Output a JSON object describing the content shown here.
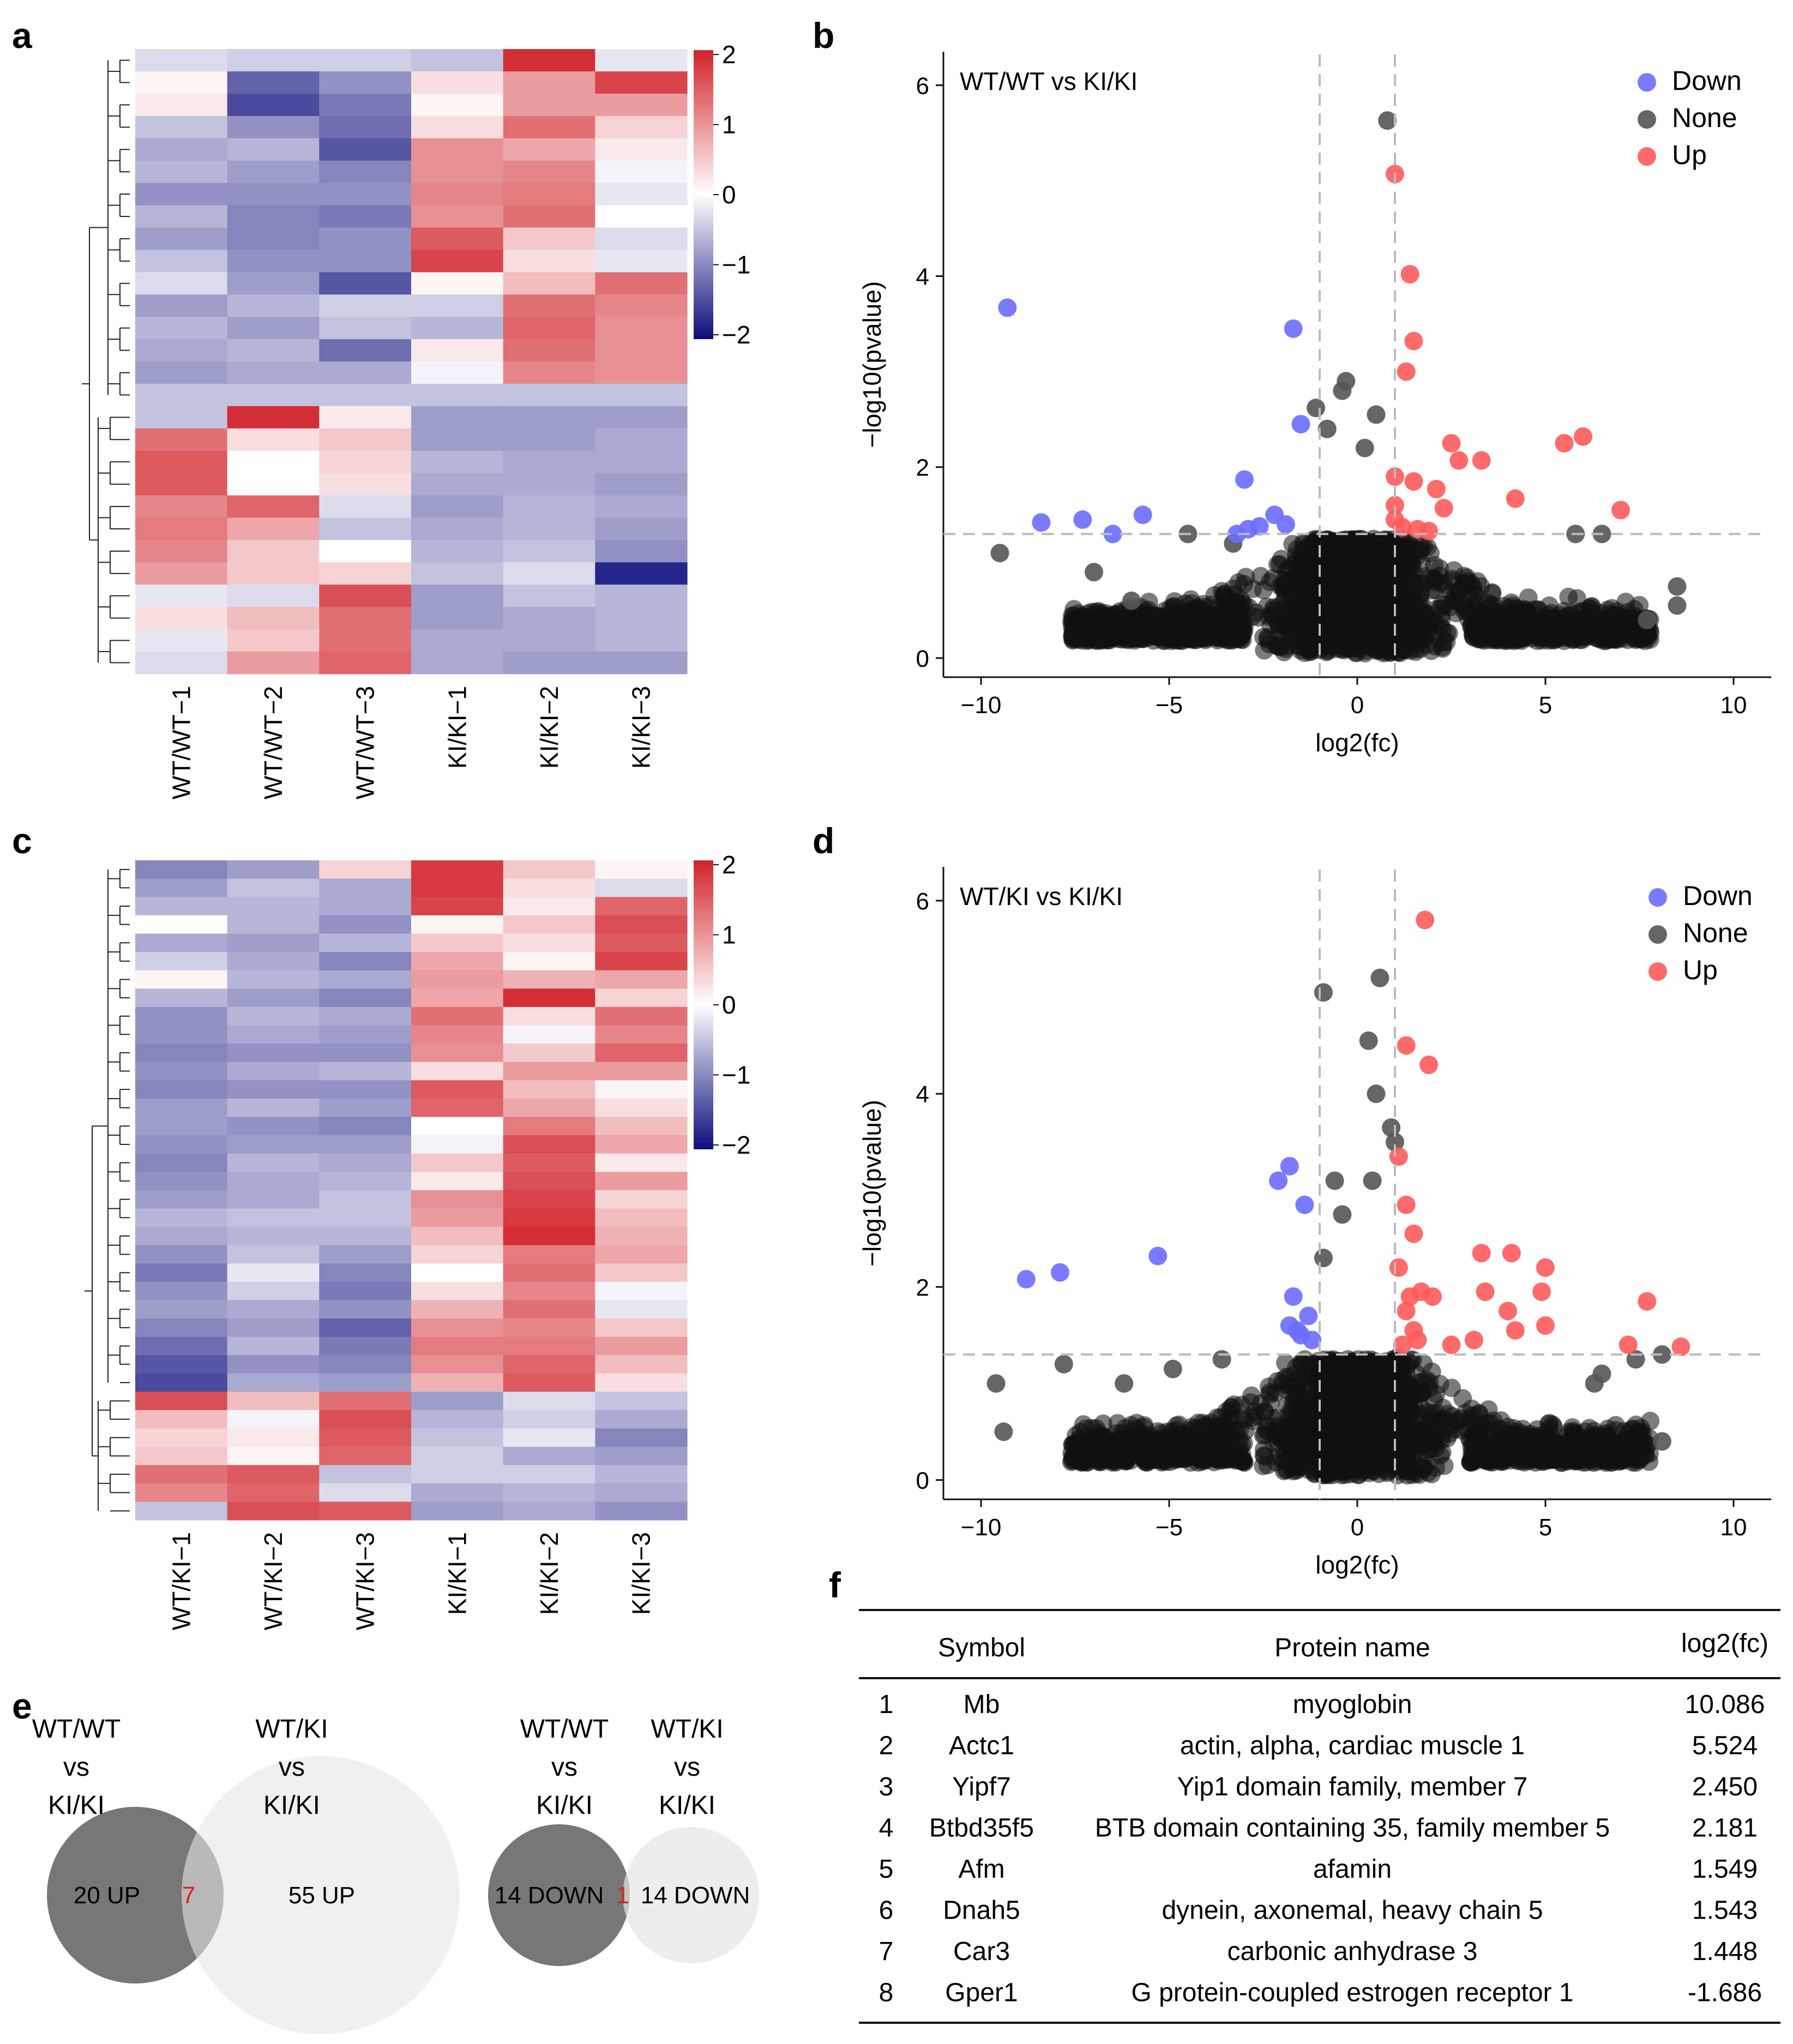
{
  "panels": {
    "a": "a",
    "b": "b",
    "c": "c",
    "d": "d",
    "e": "e",
    "f": "f"
  },
  "colors": {
    "low": "#0d0d7d",
    "mid": "#ffffff",
    "high": "#d1232a",
    "down": "#6b6bff",
    "none": "#555555",
    "up": "#ff5a5a",
    "venn_dark": "#777777",
    "venn_light": "#e8e8e8"
  },
  "chart_data": [
    {
      "id": "a",
      "type": "heatmap",
      "title": "",
      "columns": [
        "WT/WT−1",
        "WT/WT−2",
        "WT/WT−3",
        "KI/KI−1",
        "KI/KI−2",
        "KI/KI−3"
      ],
      "colorbar": {
        "ticks": [
          "2",
          "1",
          "0",
          "−1",
          "−2"
        ],
        "range": [
          -2,
          2
        ]
      },
      "rows": [
        [
          -0.3,
          -0.4,
          -0.4,
          -0.5,
          1.9,
          -0.2
        ],
        [
          0.1,
          -1.3,
          -0.9,
          0.3,
          0.9,
          1.7
        ],
        [
          0.2,
          -1.5,
          -1.1,
          0.1,
          0.9,
          0.9
        ],
        [
          -0.5,
          -0.9,
          -1.2,
          0.3,
          1.3,
          0.4
        ],
        [
          -0.7,
          -0.6,
          -1.4,
          1.0,
          0.8,
          0.2
        ],
        [
          -0.6,
          -0.8,
          -1.0,
          1.0,
          1.1,
          -0.1
        ],
        [
          -0.9,
          -0.9,
          -0.9,
          1.1,
          1.2,
          -0.2
        ],
        [
          -0.6,
          -1.0,
          -1.1,
          1.0,
          1.3,
          0.0
        ],
        [
          -0.8,
          -1.0,
          -0.9,
          1.5,
          0.5,
          -0.3
        ],
        [
          -0.5,
          -0.9,
          -0.9,
          1.7,
          0.3,
          -0.2
        ],
        [
          -0.3,
          -0.8,
          -1.4,
          0.1,
          0.6,
          1.3
        ],
        [
          -0.8,
          -0.6,
          -0.4,
          -0.4,
          1.3,
          1.1
        ],
        [
          -0.6,
          -0.8,
          -0.5,
          -0.6,
          1.4,
          1.0
        ],
        [
          -0.7,
          -0.6,
          -1.2,
          0.2,
          1.3,
          1.0
        ],
        [
          -0.8,
          -0.7,
          -0.7,
          -0.1,
          1.1,
          1.0
        ],
        [
          -0.5,
          -0.5,
          -0.5,
          -0.5,
          -0.5,
          -0.5
        ],
        [
          -0.5,
          1.9,
          0.2,
          -0.8,
          -0.8,
          -0.8
        ],
        [
          1.3,
          0.3,
          0.5,
          -0.8,
          -0.8,
          -0.7
        ],
        [
          1.5,
          0.0,
          0.4,
          -0.6,
          -0.7,
          -0.7
        ],
        [
          1.5,
          0.0,
          0.3,
          -0.7,
          -0.7,
          -0.8
        ],
        [
          1.1,
          1.4,
          -0.3,
          -0.8,
          -0.6,
          -0.7
        ],
        [
          1.2,
          0.8,
          -0.5,
          -0.7,
          -0.6,
          -0.8
        ],
        [
          1.1,
          0.5,
          0.0,
          -0.6,
          -0.5,
          -0.9
        ],
        [
          0.9,
          0.5,
          0.4,
          -0.5,
          -0.3,
          -1.8
        ],
        [
          -0.2,
          -0.3,
          1.6,
          -0.8,
          -0.5,
          -0.6
        ],
        [
          0.3,
          0.6,
          1.3,
          -0.8,
          -0.7,
          -0.6
        ],
        [
          -0.2,
          0.5,
          1.3,
          -0.7,
          -0.7,
          -0.6
        ],
        [
          -0.3,
          0.9,
          1.4,
          -0.7,
          -0.8,
          -0.8
        ]
      ]
    },
    {
      "id": "b",
      "type": "scatter",
      "title": "WT/WT vs KI/KI",
      "xlabel": "log2(fc)",
      "ylabel": "−log10(pvalue)",
      "xlim": [
        -11,
        11
      ],
      "ylim": [
        -0.2,
        6.35
      ],
      "xticks": [
        "−10",
        "−5",
        "0",
        "5",
        "10"
      ],
      "yticks": [
        "0",
        "2",
        "4",
        "6"
      ],
      "vlines": [
        -1,
        1
      ],
      "hline": 1.3,
      "legend": {
        "position": "top-right",
        "items": [
          {
            "key": "down",
            "label": "Down"
          },
          {
            "key": "none",
            "label": "None"
          },
          {
            "key": "up",
            "label": "Up"
          }
        ]
      },
      "series": {
        "down": [
          [
            -9.3,
            3.67
          ],
          [
            -8.4,
            1.42
          ],
          [
            -7.3,
            1.45
          ],
          [
            -6.5,
            1.3
          ],
          [
            -5.7,
            1.5
          ],
          [
            -3.0,
            1.87
          ],
          [
            -2.9,
            1.35
          ],
          [
            -2.6,
            1.38
          ],
          [
            -2.2,
            1.5
          ],
          [
            -1.7,
            3.45
          ],
          [
            -1.5,
            2.45
          ],
          [
            -1.9,
            1.4
          ],
          [
            -3.2,
            1.3
          ]
        ],
        "up": [
          [
            1.0,
            5.07
          ],
          [
            1.4,
            4.02
          ],
          [
            1.5,
            3.32
          ],
          [
            1.3,
            3.0
          ],
          [
            1.0,
            1.9
          ],
          [
            1.0,
            1.6
          ],
          [
            1.0,
            1.45
          ],
          [
            2.5,
            2.25
          ],
          [
            2.7,
            2.07
          ],
          [
            3.3,
            2.07
          ],
          [
            2.1,
            1.77
          ],
          [
            2.3,
            1.57
          ],
          [
            4.2,
            1.67
          ],
          [
            5.5,
            2.25
          ],
          [
            6.0,
            2.32
          ],
          [
            7.0,
            1.55
          ],
          [
            1.6,
            1.35
          ],
          [
            1.9,
            1.33
          ],
          [
            1.2,
            1.37
          ],
          [
            1.5,
            1.85
          ]
        ],
        "none": [
          [
            -9.5,
            1.1
          ],
          [
            0.8,
            5.63
          ],
          [
            -1.1,
            2.62
          ],
          [
            -0.4,
            2.8
          ],
          [
            -0.3,
            2.9
          ],
          [
            0.5,
            2.55
          ],
          [
            -0.8,
            2.4
          ],
          [
            0.2,
            2.2
          ],
          [
            -4.5,
            1.3
          ],
          [
            -3.3,
            1.2
          ],
          [
            5.8,
            1.3
          ],
          [
            6.5,
            1.3
          ],
          [
            7.7,
            0.4
          ],
          [
            8.5,
            0.75
          ],
          [
            8.5,
            0.55
          ],
          [
            -7.0,
            0.9
          ],
          [
            -6.0,
            0.6
          ]
        ]
      }
    },
    {
      "id": "c",
      "type": "heatmap",
      "title": "",
      "columns": [
        "WT/KI−1",
        "WT/KI−2",
        "WT/KI−3",
        "KI/KI−1",
        "KI/KI−2",
        "KI/KI−3"
      ],
      "colorbar": {
        "ticks": [
          "2",
          "1",
          "0",
          "−1",
          "−2"
        ],
        "range": [
          -2,
          2
        ]
      },
      "rows": [
        [
          -1.0,
          -0.8,
          0.4,
          1.8,
          0.5,
          0.1
        ],
        [
          -0.8,
          -0.5,
          -0.7,
          1.8,
          0.3,
          -0.3
        ],
        [
          -0.6,
          -0.6,
          -0.7,
          1.7,
          0.2,
          1.4
        ],
        [
          0.0,
          -0.6,
          -0.9,
          0.1,
          0.5,
          1.6
        ],
        [
          -0.7,
          -0.8,
          -0.6,
          0.5,
          0.3,
          1.5
        ],
        [
          -0.4,
          -0.7,
          -1.0,
          0.8,
          0.1,
          1.7
        ],
        [
          0.1,
          -0.6,
          -0.7,
          0.9,
          0.7,
          0.8
        ],
        [
          -0.6,
          -0.8,
          -1.0,
          0.8,
          1.9,
          0.4
        ],
        [
          -0.9,
          -0.6,
          -0.7,
          1.3,
          0.3,
          1.3
        ],
        [
          -0.9,
          -0.7,
          -0.8,
          1.1,
          -0.1,
          1.1
        ],
        [
          -1.0,
          -0.9,
          -0.9,
          1.0,
          0.5,
          1.4
        ],
        [
          -0.9,
          -0.7,
          -0.6,
          0.3,
          0.9,
          0.9
        ],
        [
          -1.0,
          -0.9,
          -0.9,
          1.5,
          0.6,
          0.1
        ],
        [
          -0.8,
          -0.6,
          -0.8,
          1.4,
          0.8,
          0.3
        ],
        [
          -0.8,
          -0.9,
          -1.0,
          0.0,
          1.2,
          0.6
        ],
        [
          -0.9,
          -0.8,
          -0.8,
          -0.1,
          1.6,
          0.8
        ],
        [
          -1.0,
          -0.6,
          -0.7,
          0.5,
          1.5,
          0.2
        ],
        [
          -0.9,
          -0.7,
          -0.6,
          0.2,
          1.6,
          0.9
        ],
        [
          -0.8,
          -0.7,
          -0.5,
          1.0,
          1.7,
          0.4
        ],
        [
          -0.6,
          -0.5,
          -0.5,
          0.9,
          1.8,
          0.6
        ],
        [
          -0.7,
          -0.6,
          -0.6,
          0.6,
          1.9,
          0.7
        ],
        [
          -0.9,
          -0.5,
          -0.8,
          0.4,
          1.2,
          0.8
        ],
        [
          -1.1,
          -0.2,
          -1.0,
          0.0,
          1.3,
          0.5
        ],
        [
          -0.9,
          -0.4,
          -1.1,
          0.3,
          1.1,
          -0.1
        ],
        [
          -0.8,
          -0.7,
          -0.9,
          0.7,
          1.3,
          -0.2
        ],
        [
          -1.0,
          -0.8,
          -1.3,
          1.0,
          1.1,
          0.5
        ],
        [
          -1.2,
          -0.6,
          -1.1,
          1.2,
          1.2,
          0.9
        ],
        [
          -1.4,
          -0.9,
          -1.0,
          1.0,
          1.4,
          0.6
        ],
        [
          -1.5,
          -0.7,
          -0.8,
          0.7,
          1.5,
          0.3
        ],
        [
          1.6,
          0.6,
          1.3,
          -0.8,
          -0.3,
          -0.5
        ],
        [
          0.6,
          -0.1,
          1.6,
          -0.6,
          -0.4,
          -0.7
        ],
        [
          0.4,
          0.2,
          1.5,
          -0.5,
          -0.2,
          -1.0
        ],
        [
          0.5,
          0.1,
          1.4,
          -0.4,
          -0.7,
          -0.8
        ],
        [
          1.3,
          1.5,
          -0.5,
          -0.4,
          -0.4,
          -0.6
        ],
        [
          1.1,
          1.4,
          -0.3,
          -0.7,
          -0.6,
          -0.7
        ],
        [
          -0.5,
          1.6,
          1.5,
          -0.8,
          -0.7,
          -0.9
        ]
      ]
    },
    {
      "id": "d",
      "type": "scatter",
      "title": "WT/KI vs KI/KI",
      "xlabel": "log2(fc)",
      "ylabel": "−log10(pvalue)",
      "xlim": [
        -11,
        11
      ],
      "ylim": [
        -0.2,
        6.35
      ],
      "xticks": [
        "−10",
        "−5",
        "0",
        "5",
        "10"
      ],
      "yticks": [
        "0",
        "2",
        "4",
        "6"
      ],
      "vlines": [
        -1,
        1
      ],
      "hline": 1.3,
      "legend": {
        "position": "top-right",
        "items": [
          {
            "key": "down",
            "label": "Down"
          },
          {
            "key": "none",
            "label": "None"
          },
          {
            "key": "up",
            "label": "Up"
          }
        ]
      },
      "series": {
        "down": [
          [
            -8.8,
            2.08
          ],
          [
            -7.9,
            2.15
          ],
          [
            -5.3,
            2.32
          ],
          [
            -1.8,
            3.25
          ],
          [
            -2.1,
            3.1
          ],
          [
            -1.4,
            2.85
          ],
          [
            -1.7,
            1.9
          ],
          [
            -1.8,
            1.6
          ],
          [
            -1.5,
            1.5
          ],
          [
            -1.3,
            1.7
          ],
          [
            -1.2,
            1.45
          ],
          [
            -1.6,
            1.55
          ]
        ],
        "up": [
          [
            1.8,
            5.8
          ],
          [
            1.3,
            4.5
          ],
          [
            1.9,
            4.3
          ],
          [
            1.1,
            3.35
          ],
          [
            1.3,
            2.85
          ],
          [
            1.5,
            2.55
          ],
          [
            1.1,
            2.2
          ],
          [
            1.4,
            1.9
          ],
          [
            1.7,
            1.95
          ],
          [
            2.0,
            1.9
          ],
          [
            3.3,
            2.35
          ],
          [
            4.1,
            2.35
          ],
          [
            5.0,
            2.2
          ],
          [
            3.4,
            1.95
          ],
          [
            4.9,
            1.95
          ],
          [
            4.0,
            1.75
          ],
          [
            4.2,
            1.55
          ],
          [
            5.0,
            1.6
          ],
          [
            7.7,
            1.85
          ],
          [
            8.6,
            1.38
          ],
          [
            7.2,
            1.4
          ],
          [
            1.2,
            1.4
          ],
          [
            1.6,
            1.45
          ],
          [
            2.5,
            1.4
          ],
          [
            3.1,
            1.45
          ],
          [
            1.3,
            1.75
          ],
          [
            1.5,
            1.55
          ]
        ],
        "none": [
          [
            -9.6,
            1.0
          ],
          [
            -9.4,
            0.5
          ],
          [
            0.6,
            5.2
          ],
          [
            -0.9,
            5.05
          ],
          [
            0.3,
            4.55
          ],
          [
            0.5,
            4.0
          ],
          [
            0.9,
            3.65
          ],
          [
            1.0,
            3.5
          ],
          [
            0.4,
            3.1
          ],
          [
            -0.6,
            3.1
          ],
          [
            -0.4,
            2.75
          ],
          [
            -0.9,
            2.3
          ],
          [
            -4.9,
            1.15
          ],
          [
            -3.6,
            1.25
          ],
          [
            -7.8,
            1.2
          ],
          [
            8.1,
            1.3
          ],
          [
            8.1,
            0.4
          ],
          [
            7.4,
            1.25
          ],
          [
            6.5,
            1.1
          ],
          [
            6.3,
            1.0
          ],
          [
            -6.2,
            1.0
          ]
        ]
      }
    },
    {
      "id": "e",
      "type": "venn",
      "groups": [
        {
          "left_label": [
            "WT/WT",
            "vs",
            "KI/KI"
          ],
          "right_label": [
            "WT/KI",
            "vs",
            "KI/KI"
          ],
          "left_only": "20 UP",
          "overlap": "7",
          "right_only": "55 UP",
          "left_count": 20,
          "overlap_count": 7,
          "right_count": 55
        },
        {
          "left_label": [
            "WT/WT",
            "vs",
            "KI/KI"
          ],
          "right_label": [
            "WT/KI",
            "vs",
            "KI/KI"
          ],
          "left_only": "14 DOWN",
          "overlap": "1",
          "right_only": "14 DOWN",
          "left_count": 14,
          "overlap_count": 1,
          "right_count": 14
        }
      ]
    },
    {
      "id": "f",
      "type": "table",
      "headers": [
        "",
        "Symbol",
        "Protein name",
        "log2(fc)"
      ],
      "rows": [
        [
          "1",
          "Mb",
          "myoglobin",
          "10.086"
        ],
        [
          "2",
          "Actc1",
          "actin, alpha, cardiac muscle 1",
          "5.524"
        ],
        [
          "3",
          "Yipf7",
          "Yip1 domain family, member 7",
          "2.450"
        ],
        [
          "4",
          "Btbd35f5",
          "BTB domain containing 35, family member 5",
          "2.181"
        ],
        [
          "5",
          "Afm",
          "afamin",
          "1.549"
        ],
        [
          "6",
          "Dnah5",
          "dynein, axonemal, heavy chain 5",
          "1.543"
        ],
        [
          "7",
          "Car3",
          "carbonic anhydrase 3",
          "1.448"
        ],
        [
          "8",
          "Gper1",
          "G protein-coupled estrogen receptor 1",
          "-1.686"
        ]
      ]
    }
  ]
}
